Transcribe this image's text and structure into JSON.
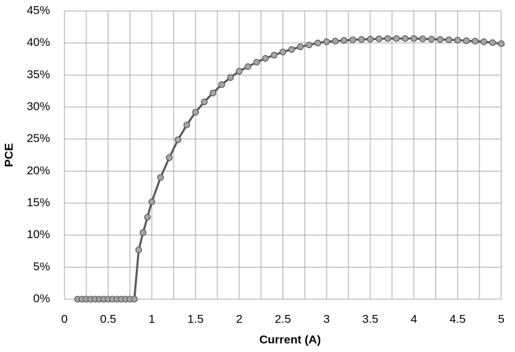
{
  "chart_data": {
    "type": "line",
    "xlabel": "Current (A)",
    "ylabel": "PCE",
    "x": [
      0.15,
      0.2,
      0.25,
      0.3,
      0.35,
      0.4,
      0.45,
      0.5,
      0.55,
      0.6,
      0.65,
      0.7,
      0.75,
      0.8,
      0.85,
      0.9,
      0.95,
      1.0,
      1.1,
      1.2,
      1.3,
      1.4,
      1.5,
      1.6,
      1.7,
      1.8,
      1.9,
      2.0,
      2.1,
      2.2,
      2.3,
      2.4,
      2.5,
      2.6,
      2.7,
      2.8,
      2.9,
      3.0,
      3.1,
      3.2,
      3.3,
      3.4,
      3.5,
      3.6,
      3.7,
      3.8,
      3.9,
      4.0,
      4.1,
      4.2,
      4.3,
      4.4,
      4.5,
      4.6,
      4.7,
      4.8,
      4.9,
      5.0
    ],
    "series": [
      {
        "name": "PCE",
        "color": "#595959",
        "marker_fill": "#a6a6a6",
        "values": [
          0,
          0,
          0,
          0,
          0,
          0,
          0,
          0,
          0,
          0,
          0,
          0,
          0,
          0,
          7.7,
          10.4,
          12.8,
          15.2,
          19.0,
          22.1,
          24.9,
          27.2,
          29.2,
          30.8,
          32.2,
          33.5,
          34.6,
          35.6,
          36.3,
          37.0,
          37.6,
          38.1,
          38.6,
          39.0,
          39.4,
          39.7,
          40.0,
          40.2,
          40.3,
          40.4,
          40.5,
          40.55,
          40.6,
          40.65,
          40.7,
          40.7,
          40.7,
          40.7,
          40.65,
          40.6,
          40.55,
          40.5,
          40.45,
          40.35,
          40.3,
          40.2,
          40.05,
          39.9
        ]
      }
    ],
    "xlim": [
      0,
      5
    ],
    "xticks": [
      0,
      0.5,
      1,
      1.5,
      2,
      2.5,
      3,
      3.5,
      4,
      4.5,
      5
    ],
    "x_minor_grid": [
      0.25,
      0.75,
      1.25,
      1.75,
      2.25,
      2.75,
      3.25,
      3.75,
      4.25,
      4.75
    ],
    "ylim": [
      0,
      45
    ],
    "yticks": [
      {
        "value": 0,
        "label": "0%"
      },
      {
        "value": 5,
        "label": "5%"
      },
      {
        "value": 10,
        "label": "10%"
      },
      {
        "value": 15,
        "label": "15%"
      },
      {
        "value": 20,
        "label": "20%"
      },
      {
        "value": 25,
        "label": "25%"
      },
      {
        "value": 30,
        "label": "30%"
      },
      {
        "value": 35,
        "label": "35%"
      },
      {
        "value": 40,
        "label": "40%"
      },
      {
        "value": 45,
        "label": "45%"
      }
    ],
    "grid": true
  }
}
